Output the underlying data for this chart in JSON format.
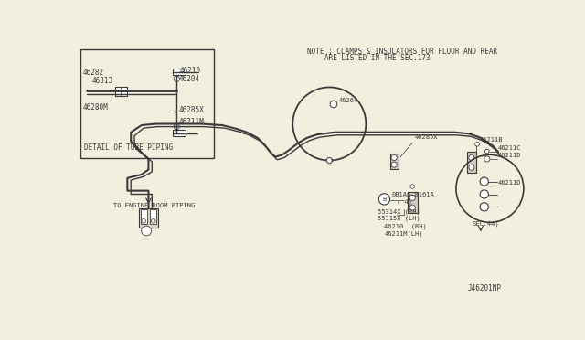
{
  "bg_color": "#f2efdf",
  "line_color": "#3a3a3a",
  "box_bg": "#f2efdf",
  "title_note1": "NOTE ; CLAMPS & INSULATORS FOR FLOOR AND REAR",
  "title_note2": "ARE LISTED IN THE SEC.173",
  "detail_label": "DETAIL OF TUBE PIPING",
  "engine_label": "TO ENGINE ROOM PIPING",
  "diagram_id": "J46201NP",
  "figsize": [
    6.4,
    3.72
  ],
  "dpi": 100
}
